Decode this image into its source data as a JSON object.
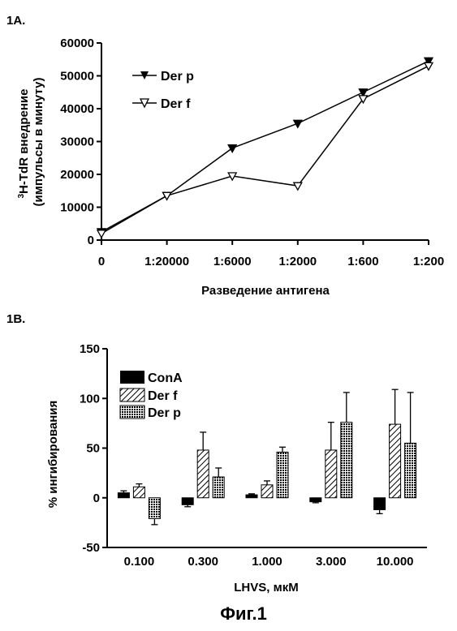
{
  "figure_caption": "Фиг.1",
  "chart_data": [
    {
      "panel_label": "1A.",
      "type": "line",
      "categories": [
        "0",
        "1:20000",
        "1:6000",
        "1:2000",
        "1:600",
        "1:200"
      ],
      "xlabel": "Разведение антигена",
      "ylabel_line1": "H-TdR внедрение",
      "ylabel_superscript": "3",
      "ylabel_line2": "(импульсы в минуту)",
      "ylim": [
        0,
        60000
      ],
      "yticks": [
        "0",
        "10000",
        "20000",
        "30000",
        "40000",
        "50000",
        "60000"
      ],
      "ytick_values": [
        0,
        10000,
        20000,
        30000,
        40000,
        50000,
        60000
      ],
      "legend_position": "top-left",
      "series": [
        {
          "name": "Der p",
          "marker": "filled-down-triangle",
          "values": [
            2500,
            13500,
            28000,
            35500,
            45000,
            54500
          ]
        },
        {
          "name": "Der f",
          "marker": "open-down-triangle",
          "values": [
            2000,
            13500,
            19500,
            16500,
            43000,
            53000
          ]
        }
      ]
    },
    {
      "panel_label": "1B.",
      "type": "bar",
      "categories": [
        "0.100",
        "0.300",
        "1.000",
        "3.000",
        "10.000"
      ],
      "xlabel": "LHVS, мкМ",
      "ylabel": "% ингибирования",
      "ylim": [
        -50,
        150
      ],
      "yticks": [
        "-50",
        "0",
        "50",
        "100",
        "150"
      ],
      "ytick_values": [
        -50,
        0,
        50,
        100,
        150
      ],
      "legend_position": "top-left",
      "series": [
        {
          "name": "ConA",
          "fill": "solid",
          "values": [
            5,
            -7,
            3,
            -4,
            -12
          ],
          "errors": [
            2,
            2,
            1,
            1,
            4
          ]
        },
        {
          "name": "Der f",
          "fill": "hatched",
          "values": [
            11,
            48,
            13,
            48,
            74
          ],
          "errors": [
            3,
            18,
            4,
            28,
            35
          ]
        },
        {
          "name": "Der p",
          "fill": "dotted",
          "values": [
            -21,
            21,
            46,
            76,
            55
          ],
          "errors": [
            6,
            9,
            5,
            30,
            51
          ]
        }
      ]
    }
  ]
}
